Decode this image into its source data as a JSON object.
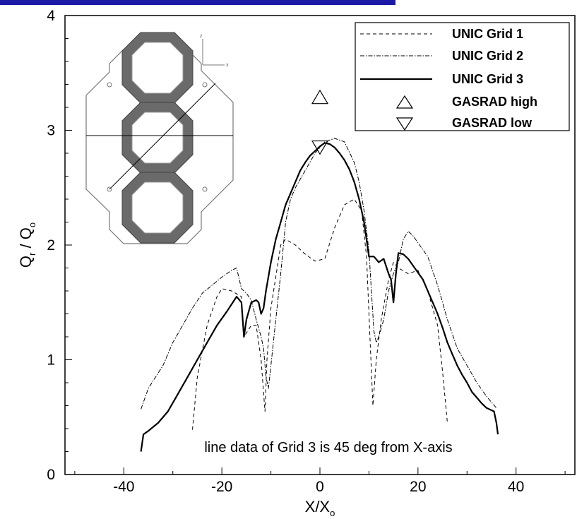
{
  "colors": {
    "top_bar": "#1a1aa6",
    "axis": "#000000",
    "series": "#000000",
    "inset_frame": "#777777"
  },
  "chart_data": {
    "type": "line",
    "xlabel": "X/X",
    "xlabel_sub": "o",
    "ylabel_q": "Q",
    "ylabel_r_sub": "r",
    "ylabel_sep": " / Q",
    "ylabel_o_sub": "o",
    "xlim": [
      -52,
      52
    ],
    "ylim": [
      0,
      4
    ],
    "x_ticks": [
      -40,
      -20,
      0,
      20,
      40
    ],
    "y_ticks": [
      0,
      1,
      2,
      3,
      4
    ],
    "grid": false,
    "legend_position": "top-right",
    "annotation": "line data of Grid 3 is 45 deg from X-axis",
    "series": [
      {
        "name": "UNIC Grid 1",
        "style": "dashed",
        "x": [
          -26,
          -25,
          -23,
          -21,
          -20,
          -18,
          -16,
          -15.5,
          -14,
          -13,
          -12,
          -11.2,
          -10.8,
          -10,
          -8,
          -7,
          -5,
          -3,
          -1,
          1,
          3,
          5,
          7,
          8.5,
          9.5,
          10.2,
          10.8,
          11.5,
          12.5,
          14,
          15,
          16,
          18,
          20,
          22,
          24,
          25,
          26
        ],
        "y": [
          0.39,
          0.85,
          1.3,
          1.55,
          1.62,
          1.6,
          1.55,
          1.2,
          1.3,
          1.3,
          1.0,
          0.55,
          1.0,
          1.45,
          2.0,
          2.05,
          2.0,
          1.92,
          1.86,
          1.88,
          2.15,
          2.35,
          2.4,
          2.3,
          1.9,
          1.2,
          0.6,
          1.0,
          1.35,
          1.7,
          1.85,
          1.8,
          1.75,
          1.78,
          1.6,
          1.3,
          0.9,
          0.45
        ]
      },
      {
        "name": "UNIC Grid 2",
        "style": "dash-dot",
        "x": [
          -36.5,
          -35,
          -32,
          -30,
          -28,
          -26,
          -24,
          -22,
          -20,
          -18,
          -17,
          -16,
          -15,
          -14,
          -13,
          -12,
          -11.5,
          -11,
          -10.5,
          -10,
          -9,
          -8,
          -7,
          -6,
          -5,
          -3,
          -1,
          1,
          3,
          5,
          7,
          8,
          9,
          10,
          10.5,
          11,
          11.5,
          12,
          13,
          14,
          15,
          16,
          17,
          18,
          19,
          20,
          22,
          24,
          26,
          28,
          30,
          32,
          34,
          36
        ],
        "y": [
          0.57,
          0.75,
          0.95,
          1.15,
          1.3,
          1.45,
          1.58,
          1.65,
          1.72,
          1.78,
          1.8,
          1.62,
          1.58,
          1.52,
          1.35,
          1.2,
          1.1,
          0.85,
          0.75,
          0.95,
          1.35,
          1.75,
          2.2,
          2.4,
          2.5,
          2.65,
          2.8,
          2.9,
          2.93,
          2.9,
          2.72,
          2.55,
          2.3,
          1.95,
          1.6,
          1.25,
          1.15,
          1.2,
          1.35,
          1.6,
          1.75,
          1.85,
          2.05,
          2.12,
          2.08,
          2.02,
          1.9,
          1.65,
          1.35,
          1.1,
          0.95,
          0.8,
          0.68,
          0.58
        ]
      },
      {
        "name": "UNIC Grid 3",
        "style": "solid",
        "x": [
          -36.5,
          -36,
          -35,
          -33,
          -31,
          -29,
          -27,
          -25,
          -23,
          -21,
          -19,
          -17,
          -16,
          -15.5,
          -15,
          -14,
          -13,
          -12.5,
          -12,
          -11.5,
          -11,
          -10,
          -9,
          -8,
          -7,
          -6,
          -5,
          -4,
          -3,
          -2,
          -1,
          0,
          1,
          2,
          3,
          4,
          5,
          6,
          7,
          8,
          9,
          10,
          11,
          12,
          13,
          14,
          14.5,
          15,
          15.5,
          16,
          17,
          18,
          19,
          20,
          21,
          22,
          23,
          24,
          25,
          26,
          27,
          28,
          29,
          30,
          31,
          32,
          33,
          34,
          35,
          35.5,
          36,
          36.3
        ],
        "y": [
          0.2,
          0.35,
          0.38,
          0.45,
          0.55,
          0.7,
          0.85,
          1.0,
          1.15,
          1.3,
          1.42,
          1.55,
          1.5,
          1.2,
          1.35,
          1.5,
          1.52,
          1.5,
          1.4,
          1.45,
          1.6,
          1.85,
          2.05,
          2.2,
          2.35,
          2.45,
          2.55,
          2.65,
          2.72,
          2.78,
          2.82,
          2.86,
          2.89,
          2.88,
          2.85,
          2.8,
          2.74,
          2.66,
          2.55,
          2.4,
          2.2,
          1.9,
          1.9,
          1.85,
          1.88,
          1.75,
          1.7,
          1.5,
          1.75,
          1.93,
          1.92,
          1.88,
          1.82,
          1.76,
          1.7,
          1.6,
          1.5,
          1.4,
          1.28,
          1.15,
          1.05,
          0.95,
          0.87,
          0.8,
          0.72,
          0.67,
          0.62,
          0.58,
          0.56,
          0.55,
          0.45,
          0.35
        ]
      },
      {
        "name": "GASRAD high",
        "style": "triangle-up",
        "x": [
          0
        ],
        "y": [
          3.28
        ]
      },
      {
        "name": "GASRAD low",
        "style": "triangle-down",
        "x": [
          0
        ],
        "y": [
          2.86
        ]
      }
    ]
  }
}
